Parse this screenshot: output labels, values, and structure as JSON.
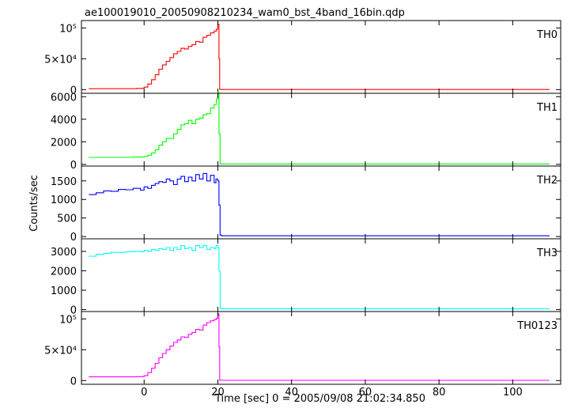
{
  "chart_data": {
    "type": "line",
    "title": "ae100019010_20050908210234_wam0_bst_4band_16bin.qdp",
    "xlabel": "Time [sec] 0 = 2005/09/08 21:02:34.850",
    "ylabel": "Counts/sec",
    "xlim": [
      -17,
      113
    ],
    "x_ticks": [
      0,
      20,
      40,
      60,
      80,
      100
    ],
    "grid": false,
    "panels": [
      {
        "name": "TH0",
        "color": "#ff0000",
        "ylim": [
          -6000,
          112000
        ],
        "y_ticks": [
          0,
          50000,
          100000
        ],
        "y_tick_labels": [
          "0",
          "5×10⁴",
          "10⁵"
        ],
        "x": [
          -15,
          -5,
          -2,
          0,
          1,
          2,
          3,
          4,
          5,
          6,
          7,
          8,
          9,
          10,
          11,
          12,
          13,
          14,
          15,
          16,
          17,
          18,
          19,
          19.6,
          20,
          20.3,
          20.5,
          21,
          30,
          60,
          90,
          110
        ],
        "y": [
          1500,
          1500,
          2000,
          4000,
          9000,
          16000,
          24000,
          33000,
          40000,
          46000,
          52000,
          58000,
          62000,
          67000,
          66000,
          70000,
          73000,
          78000,
          77000,
          85000,
          88000,
          92000,
          95000,
          98000,
          106000,
          50000,
          300,
          200,
          200,
          200,
          200,
          200
        ]
      },
      {
        "name": "TH1",
        "color": "#00ff00",
        "ylim": [
          -150,
          6300
        ],
        "y_ticks": [
          0,
          2000,
          4000,
          6000
        ],
        "y_tick_labels": [
          "0",
          "2000",
          "4000",
          "6000"
        ],
        "x": [
          -15,
          -8,
          -3,
          0,
          1,
          2,
          3,
          4,
          5,
          6,
          7,
          8,
          9,
          10,
          11,
          12,
          13,
          14,
          15,
          16,
          17,
          18,
          19,
          19.6,
          20,
          20.3,
          20.6,
          21,
          30,
          60,
          90,
          110
        ],
        "y": [
          620,
          620,
          650,
          700,
          800,
          1000,
          1300,
          1700,
          2000,
          2300,
          2300,
          2700,
          3100,
          3500,
          3600,
          3900,
          3600,
          4000,
          4100,
          4400,
          4500,
          5000,
          5300,
          5800,
          6400,
          2700,
          50,
          40,
          30,
          30,
          30,
          30
        ]
      },
      {
        "name": "TH2",
        "color": "#0000ff",
        "ylim": [
          -60,
          1900
        ],
        "y_ticks": [
          0,
          500,
          1000,
          1500
        ],
        "y_tick_labels": [
          "0",
          "500",
          "1000",
          "1500"
        ],
        "x": [
          -15,
          -13,
          -11,
          -9,
          -7,
          -5,
          -3,
          -1,
          0,
          1,
          2,
          3,
          4,
          5,
          6,
          7,
          8,
          9,
          10,
          11,
          12,
          13,
          14,
          15,
          16,
          17,
          18,
          19,
          19.5,
          20,
          20.3,
          20.6,
          21,
          30,
          60,
          90,
          110
        ],
        "y": [
          1130,
          1180,
          1230,
          1220,
          1270,
          1260,
          1300,
          1250,
          1340,
          1300,
          1380,
          1430,
          1480,
          1460,
          1550,
          1500,
          1400,
          1550,
          1620,
          1480,
          1600,
          1500,
          1670,
          1550,
          1700,
          1500,
          1650,
          1450,
          1550,
          1500,
          850,
          40,
          20,
          20,
          20,
          20,
          20
        ]
      },
      {
        "name": "TH3",
        "color": "#00ffff",
        "ylim": [
          -100,
          3650
        ],
        "y_ticks": [
          0,
          1000,
          2000,
          3000
        ],
        "y_tick_labels": [
          "0",
          "1000",
          "2000",
          "3000"
        ],
        "x": [
          -15,
          -13,
          -11,
          -9,
          -7,
          -5,
          -3,
          -1,
          0,
          1,
          2,
          3,
          4,
          5,
          6,
          7,
          8,
          9,
          10,
          11,
          12,
          13,
          14,
          15,
          16,
          17,
          18,
          19,
          19.5,
          20,
          20.3,
          20.6,
          21,
          30,
          60,
          90,
          110
        ],
        "y": [
          2750,
          2850,
          2900,
          2950,
          2950,
          2980,
          3000,
          2980,
          3050,
          3000,
          3100,
          3050,
          3150,
          3100,
          3200,
          3050,
          3200,
          3100,
          3300,
          3150,
          3200,
          3050,
          3300,
          3200,
          3300,
          3100,
          3200,
          3150,
          3300,
          3200,
          2000,
          60,
          40,
          40,
          40,
          40,
          40
        ]
      },
      {
        "name": "TH0123",
        "color": "#ff00ff",
        "ylim": [
          -6000,
          112000
        ],
        "y_ticks": [
          0,
          50000,
          100000
        ],
        "y_tick_labels": [
          "0",
          "5×10⁴",
          "10⁵"
        ],
        "x": [
          -15,
          -5,
          -2,
          0,
          1,
          2,
          3,
          4,
          5,
          6,
          7,
          8,
          9,
          10,
          11,
          12,
          13,
          14,
          15,
          16,
          17,
          18,
          19,
          19.6,
          20,
          20.3,
          20.5,
          21,
          30,
          60,
          90,
          110
        ],
        "y": [
          6000,
          6000,
          6500,
          8000,
          13000,
          20000,
          28000,
          37000,
          44000,
          50000,
          56000,
          62000,
          66000,
          71000,
          70000,
          75000,
          78000,
          83000,
          82000,
          90000,
          94000,
          97000,
          99000,
          101000,
          108000,
          55000,
          600,
          400,
          400,
          400,
          400,
          400
        ]
      }
    ]
  }
}
